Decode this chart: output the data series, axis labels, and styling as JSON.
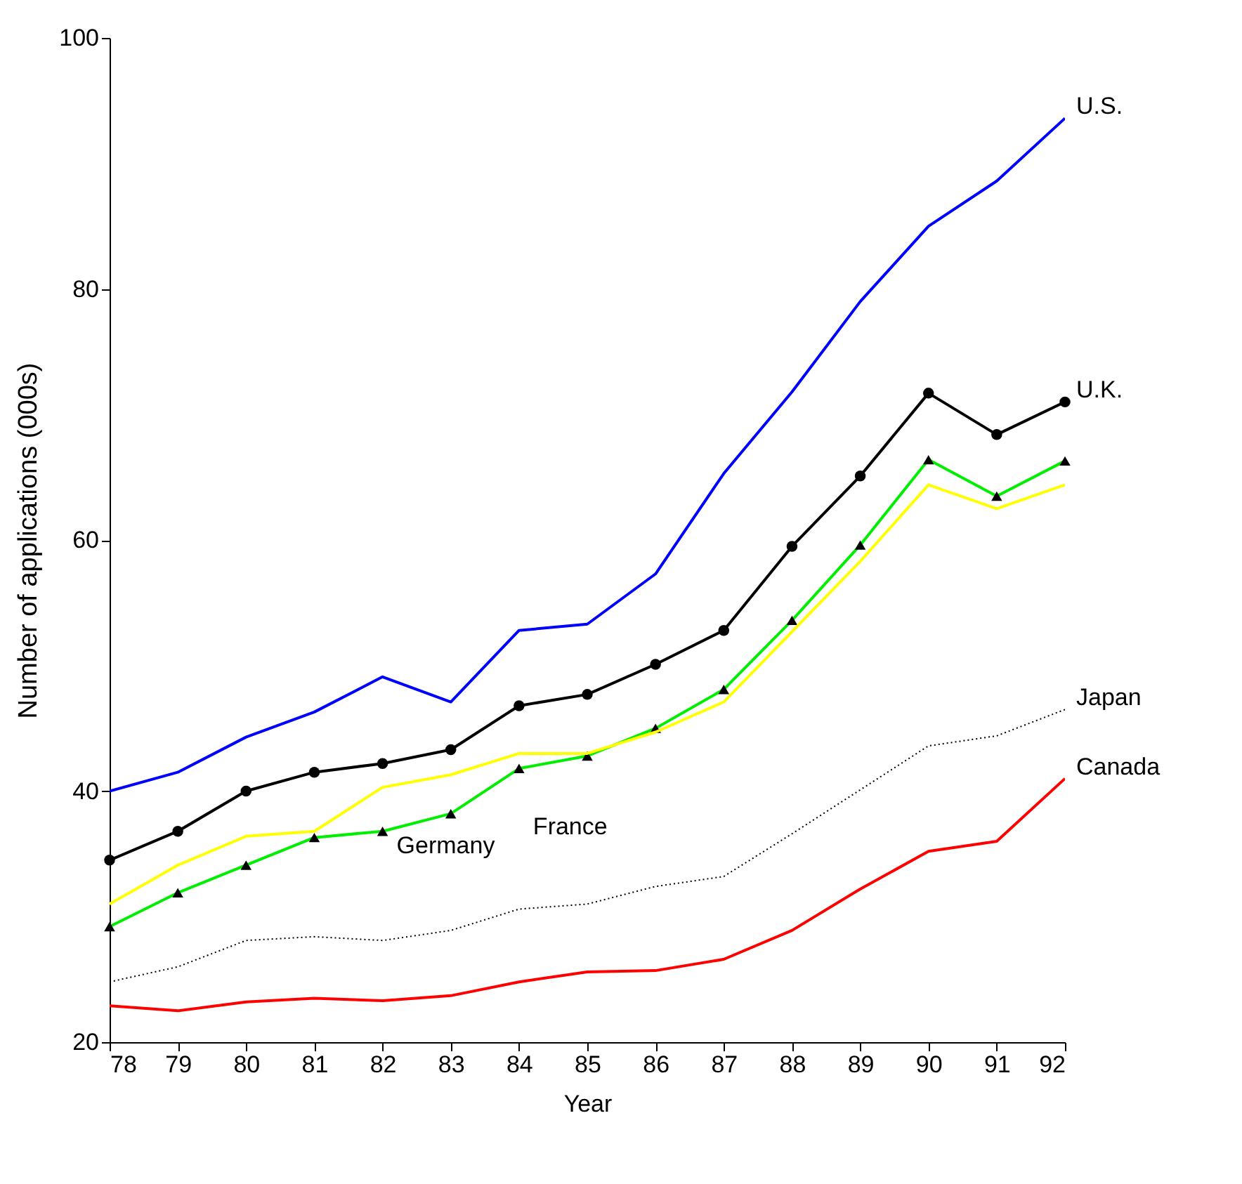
{
  "chart_data": {
    "type": "line",
    "xlabel": "Year",
    "ylabel": "Number of applications (000s)",
    "x": [
      78,
      79,
      80,
      81,
      82,
      83,
      84,
      85,
      86,
      87,
      88,
      89,
      90,
      91,
      92
    ],
    "xlim": [
      78,
      92
    ],
    "xticks": [
      78,
      79,
      80,
      81,
      82,
      83,
      84,
      85,
      86,
      87,
      88,
      89,
      90,
      91,
      92
    ],
    "ylim": [
      20,
      100
    ],
    "yticks": [
      20,
      40,
      60,
      80,
      100
    ],
    "grid": false,
    "series": [
      {
        "name": "U.S.",
        "color": "#0000ff",
        "marker": "none",
        "values": [
          40.0,
          41.5,
          44.3,
          46.3,
          49.1,
          47.1,
          52.8,
          53.3,
          57.3,
          65.3,
          71.8,
          79.0,
          85.0,
          88.6,
          93.6
        ]
      },
      {
        "name": "U.K.",
        "color": "#000000",
        "marker": "circle",
        "values": [
          34.5,
          36.8,
          40.0,
          41.5,
          42.2,
          43.3,
          46.8,
          47.7,
          50.1,
          52.8,
          59.5,
          65.1,
          71.7,
          68.4,
          71.0
        ]
      },
      {
        "color": "#00ee00",
        "marker": "triangle",
        "values": [
          29.2,
          31.9,
          34.1,
          36.3,
          36.8,
          38.2,
          41.8,
          42.8,
          45.0,
          48.1,
          53.6,
          59.6,
          66.4,
          63.5,
          66.3
        ]
      },
      {
        "color": "#ffff00",
        "marker": "none",
        "values": [
          31.0,
          34.1,
          36.4,
          36.8,
          40.3,
          41.3,
          43.0,
          43.0,
          44.7,
          47.1,
          52.7,
          58.3,
          64.4,
          62.5,
          64.4
        ]
      },
      {
        "name": "Japan",
        "color": "#000000",
        "marker": "none",
        "line_style": "dotted",
        "values": [
          24.8,
          26.0,
          28.1,
          28.4,
          28.1,
          28.9,
          30.6,
          31.0,
          32.4,
          33.2,
          36.6,
          40.1,
          43.6,
          44.4,
          46.5
        ]
      },
      {
        "name": "Canada",
        "color": "#ff0000",
        "marker": "none",
        "values": [
          22.9,
          22.5,
          23.2,
          23.5,
          23.3,
          23.7,
          24.8,
          25.6,
          25.7,
          26.6,
          28.9,
          32.2,
          35.2,
          36.0,
          41.0
        ]
      }
    ],
    "annotations": [
      {
        "text": "Germany",
        "x": 82,
        "y": 40.3
      },
      {
        "text": "France",
        "x": 84,
        "y": 41.8
      }
    ]
  }
}
